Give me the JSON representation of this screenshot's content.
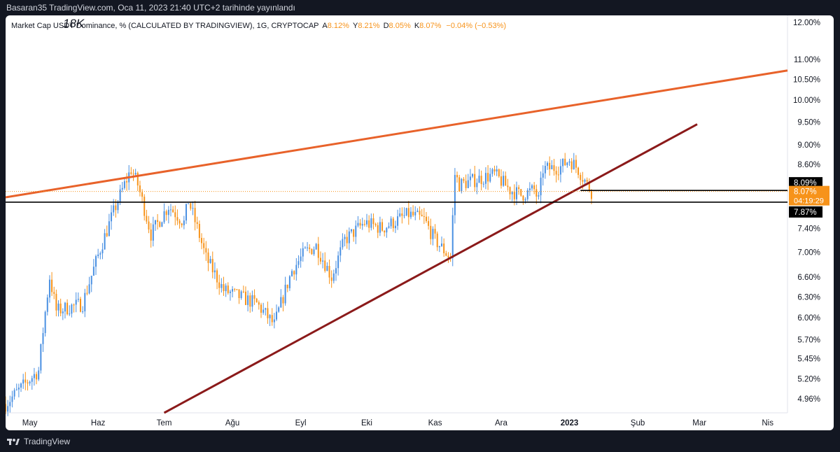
{
  "header": {
    "publish_info": "Basaran35 TradingView.com, Oca 11, 2023 21:40 UTC+2 tarihinde yayınlandı"
  },
  "legend": {
    "title": "Market Cap USDT Dominance, % (CALCULATED BY TRADINGVIEW), 1G, CRYPTOCAP",
    "open_label": "A",
    "open_value": "8.12%",
    "high_label": "Y",
    "high_value": "8.21%",
    "low_label": "D",
    "low_value": "8.05%",
    "close_label": "K",
    "close_value": "8.07%",
    "change": "−0.04% (−0.53%)"
  },
  "annotation": "18K",
  "footer": {
    "brand": "TradingView",
    "logo_icon": "tradingview-logo-icon"
  },
  "colors": {
    "up": "#4a90e2",
    "down": "#f7931a",
    "upper_trendline": "#e8622a",
    "lower_trendline": "#8b1a1a",
    "support_line": "#000000",
    "price_tag": "#f7931a"
  },
  "chart_data": {
    "type": "candlestick",
    "title": "Market Cap USDT Dominance, % (CALCULATED BY TRADINGVIEW), 1G, CRYPTOCAP",
    "y_scale": "log",
    "ylim": [
      4.8,
      12.2
    ],
    "y_ticks": [
      "12.00%",
      "11.00%",
      "10.50%",
      "10.00%",
      "9.50%",
      "9.00%",
      "8.60%",
      "7.40%",
      "7.00%",
      "6.60%",
      "6.30%",
      "6.00%",
      "5.70%",
      "5.45%",
      "5.20%",
      "4.96%"
    ],
    "x_ticks": [
      "May",
      "Haz",
      "Tem",
      "Ağu",
      "Eyl",
      "Eki",
      "Kas",
      "Ara",
      "2023",
      "Şub",
      "Mar",
      "Nis"
    ],
    "x_tick_dates": [
      "2022-05-01",
      "2022-06-01",
      "2022-07-01",
      "2022-08-01",
      "2022-09-01",
      "2022-10-01",
      "2022-11-01",
      "2022-12-01",
      "2023-01-01",
      "2023-02-01",
      "2023-03-01",
      "2023-04-01"
    ],
    "x_range": [
      "2022-04-20",
      "2023-04-10"
    ],
    "path_anchors": [
      [
        "2022-04-20",
        4.9
      ],
      [
        "2022-05-05",
        5.3
      ],
      [
        "2022-05-10",
        6.6
      ],
      [
        "2022-05-13",
        6.1
      ],
      [
        "2022-05-25",
        6.2
      ],
      [
        "2022-06-10",
        7.9
      ],
      [
        "2022-06-16",
        8.5
      ],
      [
        "2022-06-19",
        8.2
      ],
      [
        "2022-06-25",
        7.3
      ],
      [
        "2022-07-03",
        7.8
      ],
      [
        "2022-07-10",
        7.5
      ],
      [
        "2022-07-12",
        7.9
      ],
      [
        "2022-07-20",
        6.9
      ],
      [
        "2022-07-28",
        6.4
      ],
      [
        "2022-08-12",
        6.2
      ],
      [
        "2022-08-20",
        5.9
      ],
      [
        "2022-08-28",
        6.7
      ],
      [
        "2022-09-03",
        7.0
      ],
      [
        "2022-09-08",
        7.1
      ],
      [
        "2022-09-15",
        6.6
      ],
      [
        "2022-09-21",
        7.2
      ],
      [
        "2022-09-30",
        7.5
      ],
      [
        "2022-10-08",
        7.4
      ],
      [
        "2022-10-20",
        7.65
      ],
      [
        "2022-10-27",
        7.55
      ],
      [
        "2022-11-01",
        7.2
      ],
      [
        "2022-11-08",
        6.9
      ],
      [
        "2022-11-09",
        7.6
      ],
      [
        "2022-11-10",
        8.4
      ],
      [
        "2022-11-12",
        8.2
      ],
      [
        "2022-11-20",
        8.3
      ],
      [
        "2022-11-28",
        8.4
      ],
      [
        "2022-12-05",
        8.1
      ],
      [
        "2022-12-10",
        8.0
      ],
      [
        "2022-12-16",
        8.1
      ],
      [
        "2022-12-18",
        7.9
      ],
      [
        "2022-12-20",
        8.5
      ],
      [
        "2022-12-28",
        8.55
      ],
      [
        "2023-01-01",
        8.7
      ],
      [
        "2023-01-05",
        8.5
      ],
      [
        "2023-01-09",
        8.2
      ],
      [
        "2023-01-11",
        8.07
      ]
    ],
    "volatility_pct": 2.2,
    "current_price": {
      "value": 8.07,
      "label": "8.07%",
      "countdown": "04:19:29"
    },
    "horizontal_levels": [
      {
        "value": 8.09,
        "label": "8.09%",
        "start_date": "2023-01-06"
      },
      {
        "value": 7.87,
        "label": "7.87%"
      }
    ],
    "trendlines": [
      {
        "name": "upper-trendline",
        "from": [
          "2022-04-20",
          7.96
        ],
        "to": [
          "2023-04-10",
          10.72
        ]
      },
      {
        "name": "lower-trendline",
        "from": [
          "2022-07-01",
          4.8
        ],
        "to": [
          "2023-02-28",
          9.45
        ]
      }
    ]
  }
}
